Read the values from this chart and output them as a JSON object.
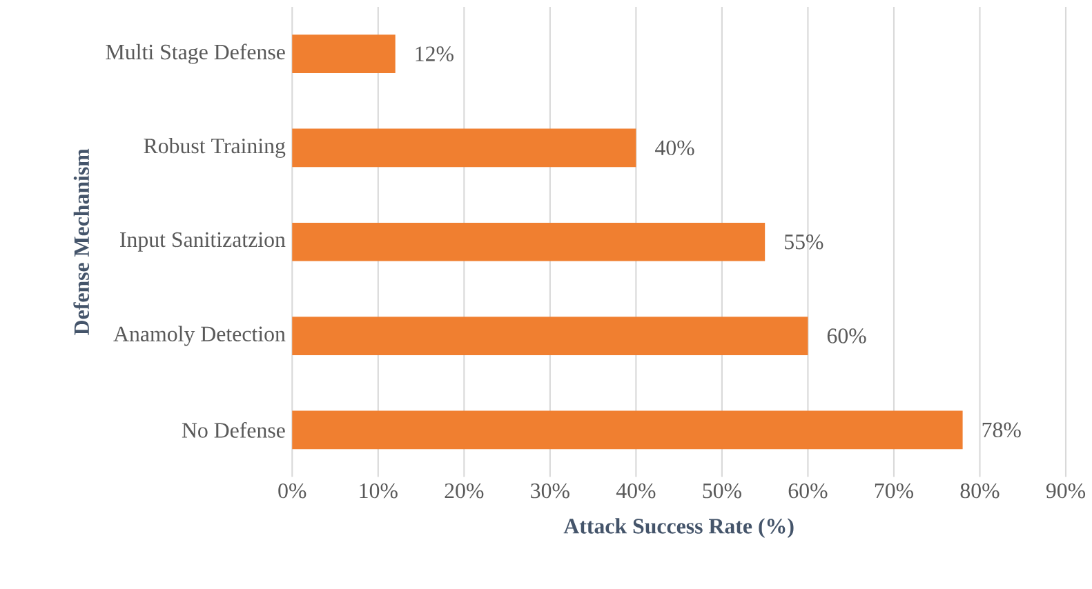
{
  "chart_data": {
    "type": "bar",
    "orientation": "horizontal",
    "xlabel": "Attack Success Rate (%)",
    "ylabel": "Defense Mechanism",
    "categories": [
      "Multi Stage Defense",
      "Robust Training",
      "Input Sanitizatzion",
      "Anamoly Detection",
      "No Defense"
    ],
    "values": [
      12,
      40,
      55,
      60,
      78
    ],
    "value_labels": [
      "12%",
      "40%",
      "55%",
      "60%",
      "78%"
    ],
    "color": "#f07f30",
    "xlim": [
      0,
      90
    ],
    "xticks": [
      {
        "value": 0,
        "label": "0%"
      },
      {
        "value": 10,
        "label": "10%"
      },
      {
        "value": 20,
        "label": "20%"
      },
      {
        "value": 30,
        "label": "30%"
      },
      {
        "value": 40,
        "label": "40%"
      },
      {
        "value": 50,
        "label": "50%"
      },
      {
        "value": 60,
        "label": "60%"
      },
      {
        "value": 70,
        "label": "70%"
      },
      {
        "value": 80,
        "label": "80%"
      },
      {
        "value": 90,
        "label": "90%"
      }
    ],
    "grid": "x"
  }
}
